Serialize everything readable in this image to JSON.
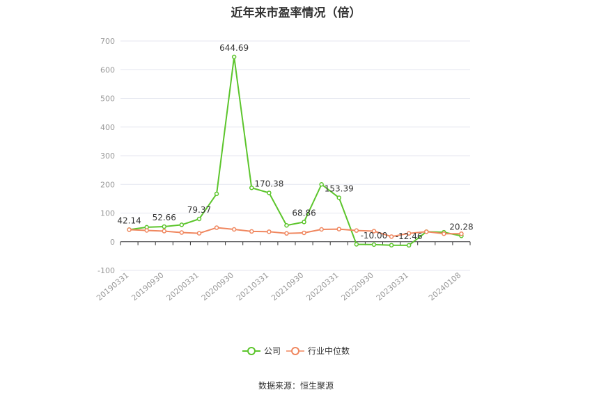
{
  "title": "近年来市盈率情况（倍）",
  "source": "数据来源：恒生聚源",
  "colors": {
    "company": "#5cc52c",
    "industry": "#f0875f",
    "grid": "#e4e6ef",
    "axis": "#333333",
    "tick": "#999999"
  },
  "chart_data": {
    "type": "line",
    "title": "近年来市盈率情况（倍）",
    "ylim": [
      -100,
      700
    ],
    "yticks": [
      -100,
      0,
      100,
      200,
      300,
      400,
      500,
      600,
      700
    ],
    "x": [
      "20190331",
      "20190630",
      "20190930",
      "20191231",
      "20200331",
      "20200630",
      "20200930",
      "20201231",
      "20210331",
      "20210630",
      "20210930",
      "20211231",
      "20220331",
      "20220630",
      "20220930",
      "20221231",
      "20230331",
      "20230630",
      "20230930",
      "20240108"
    ],
    "xtick_labels": [
      "20190331",
      "20190930",
      "20200331",
      "20200930",
      "20210331",
      "20210930",
      "20220331",
      "20220930",
      "20230331",
      "20240108"
    ],
    "grid": true,
    "legend_position": "bottom",
    "series": [
      {
        "name": "公司",
        "values": [
          42.14,
          50.5,
          52.66,
          59.0,
          79.37,
          167.0,
          644.69,
          188.0,
          170.38,
          57.0,
          68.86,
          200.0,
          153.39,
          -9.0,
          -10.0,
          -12.0,
          -12.46,
          35.0,
          33.0,
          20.28
        ]
      },
      {
        "name": "行业中位数",
        "values": [
          42.0,
          39.5,
          37.0,
          32.0,
          29.5,
          49.0,
          43.0,
          36.0,
          35.0,
          29.0,
          31.0,
          43.0,
          44.0,
          39.0,
          37.0,
          18.0,
          29.0,
          35.0,
          28.0,
          28.0
        ]
      }
    ],
    "annotations": [
      {
        "series": 0,
        "index": 0,
        "text": "42.14"
      },
      {
        "series": 0,
        "index": 2,
        "text": "52.66"
      },
      {
        "series": 0,
        "index": 4,
        "text": "79.37"
      },
      {
        "series": 0,
        "index": 6,
        "text": "644.69"
      },
      {
        "series": 0,
        "index": 8,
        "text": "170.38"
      },
      {
        "series": 0,
        "index": 10,
        "text": "68.86"
      },
      {
        "series": 0,
        "index": 12,
        "text": "153.39"
      },
      {
        "series": 0,
        "index": 14,
        "text": "-10.00"
      },
      {
        "series": 0,
        "index": 16,
        "text": "-12.46"
      },
      {
        "series": 0,
        "index": 19,
        "text": "20.28"
      }
    ]
  }
}
